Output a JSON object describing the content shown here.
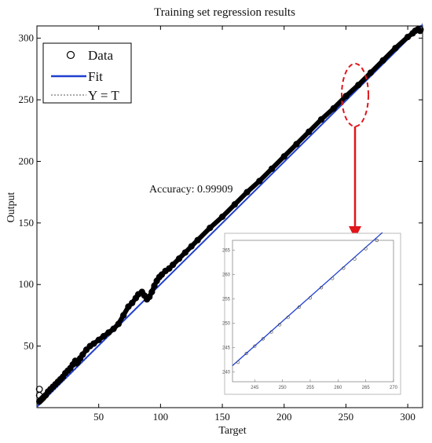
{
  "chart_data": {
    "type": "scatter",
    "title": "Training set regression results",
    "xlabel": "Target",
    "ylabel": "Output",
    "xlim": [
      0,
      312
    ],
    "ylim": [
      0,
      310
    ],
    "x_ticks": [
      "50",
      "100",
      "150",
      "200",
      "250",
      "300"
    ],
    "y_ticks": [
      "50",
      "100",
      "150",
      "200",
      "250",
      "300"
    ],
    "grid": false,
    "legend": {
      "placement": "top-left",
      "entries": [
        "Data",
        "Fit",
        "Y = T"
      ]
    },
    "annotation": "Accuracy: 0.99909",
    "series": [
      {
        "name": "Data",
        "marker": "circle",
        "points_x": [
          2,
          3,
          4,
          5,
          7,
          9,
          11,
          13,
          15,
          17,
          19,
          21,
          23,
          25,
          27,
          29,
          31,
          32,
          33,
          35,
          37,
          40,
          43,
          46,
          50,
          54,
          58,
          62,
          66,
          70,
          74,
          77,
          80,
          82,
          85,
          87,
          89,
          91,
          93,
          95,
          97,
          99,
          101,
          104,
          107,
          110,
          115,
          120,
          125,
          130,
          140,
          150,
          160,
          170,
          180,
          190,
          200,
          210,
          220,
          230,
          240,
          250,
          260,
          270,
          280,
          290,
          300,
          304,
          306,
          308,
          310
        ],
        "points_y": [
          5,
          6,
          7,
          8,
          10,
          13,
          15,
          17,
          19,
          21,
          23,
          25,
          28,
          30,
          32,
          35,
          38,
          36,
          37,
          40,
          43,
          47,
          50,
          52,
          55,
          58,
          61,
          64,
          68,
          75,
          82,
          85,
          89,
          92,
          94,
          91,
          88,
          90,
          94,
          99,
          103,
          106,
          108,
          111,
          113,
          116,
          121,
          126,
          131,
          136,
          146,
          155,
          165,
          175,
          184,
          194,
          204,
          214,
          224,
          234,
          243,
          253,
          262,
          272,
          282,
          292,
          301,
          304,
          306,
          307,
          306
        ]
      },
      {
        "name": "Fit",
        "color": "#1f3fcf",
        "x": [
          0,
          312
        ],
        "y": [
          0.8,
          311
        ]
      },
      {
        "name": "Y = T",
        "color": "#555555",
        "x": [
          0,
          312
        ],
        "y": [
          0,
          312
        ]
      }
    ],
    "outliers": [
      {
        "x": 2,
        "y": 15
      },
      {
        "x": 2,
        "y": 10
      }
    ],
    "inset": {
      "x_ticks": [
        "245",
        "250",
        "255",
        "260",
        "265",
        "270"
      ],
      "y_ticks": [
        "240",
        "245",
        "250",
        "255",
        "260",
        "265"
      ],
      "xlim": [
        241,
        270
      ],
      "ylim": [
        238,
        267
      ],
      "points_x": [
        242,
        243.5,
        245,
        246.5,
        248,
        249.5,
        251,
        253,
        255,
        257,
        259,
        261,
        263,
        265,
        267
      ],
      "points_y": [
        242,
        243.8,
        245.3,
        246.8,
        248.2,
        249.7,
        251.2,
        253.3,
        255.2,
        257.3,
        259.2,
        261.3,
        263.2,
        265.3,
        267
      ]
    }
  }
}
